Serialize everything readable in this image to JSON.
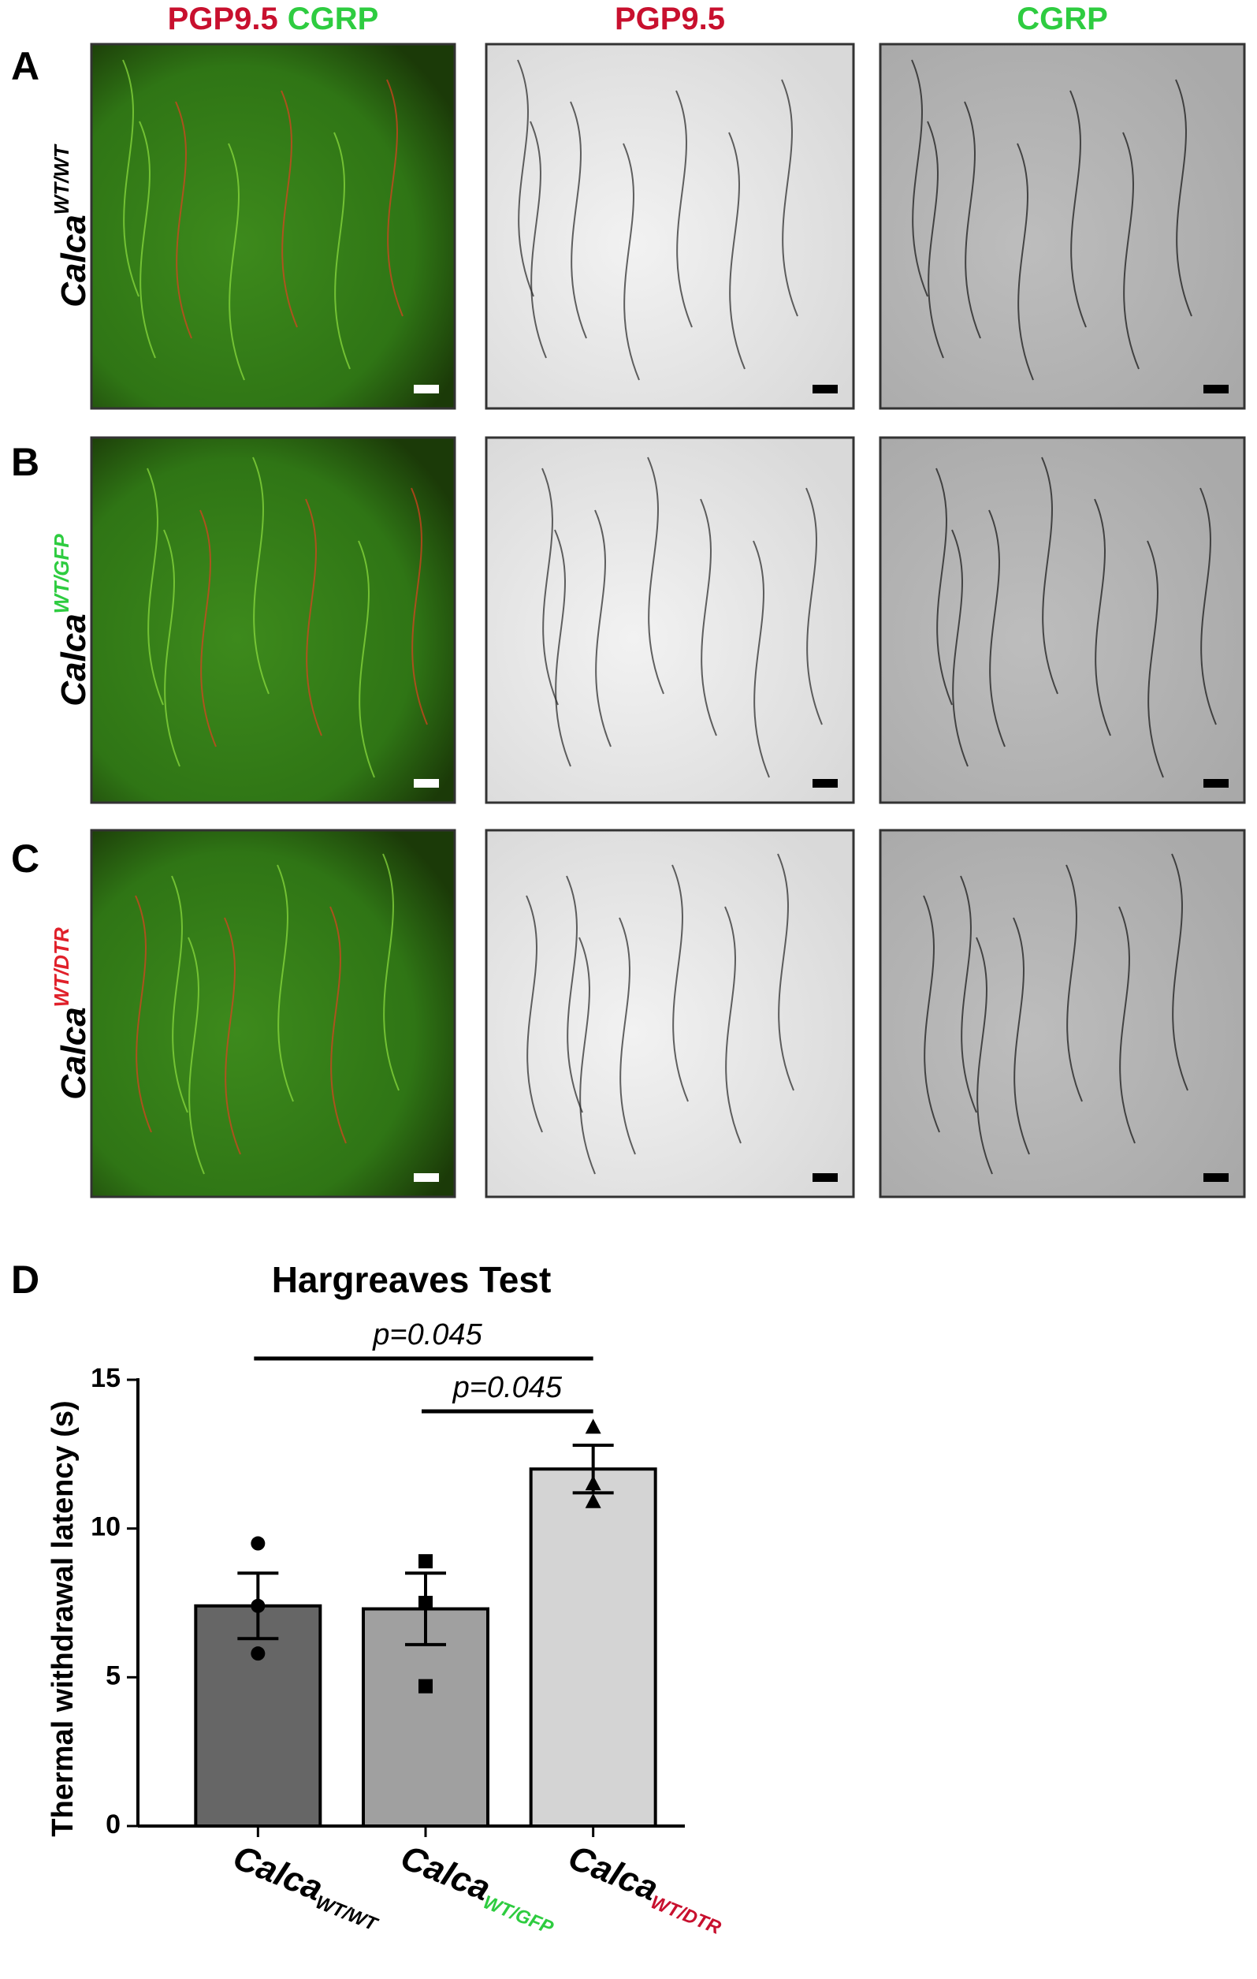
{
  "figure": {
    "panel_labels": [
      "A",
      "B",
      "C",
      "D"
    ],
    "column_headers": [
      {
        "parts": [
          "PGP9.5",
          "CGRP"
        ],
        "colors": [
          "#c8102e",
          "#2ecc40"
        ]
      },
      {
        "parts": [
          "PGP9.5"
        ],
        "colors": [
          "#c8102e"
        ]
      },
      {
        "parts": [
          "CGRP"
        ],
        "colors": [
          "#2ecc40"
        ]
      }
    ],
    "row_labels": [
      {
        "text": "Calca",
        "sup": "WT/WT",
        "sup_color": "#ffffff"
      },
      {
        "text": "Calca",
        "sup": "WT/GFP",
        "sup_color": "#2ecc40"
      },
      {
        "text": "Calca",
        "sup": "WT/DTR",
        "sup_color": "#e0202a"
      }
    ]
  },
  "chart_data": {
    "type": "bar",
    "title": "Hargreaves Test",
    "y_label": "Thermal withdrawal latency (s)",
    "categories": [
      {
        "text": "Calca",
        "sup": "WT/WT",
        "sup_color": "#000000"
      },
      {
        "text": "Calca",
        "sup": "WT/GFP",
        "sup_color": "#2ecc40"
      },
      {
        "text": "Calca",
        "sup": "WT/DTR",
        "sup_color": "#c8102e"
      }
    ],
    "values": [
      7.4,
      7.3,
      12.0
    ],
    "errors": [
      1.1,
      1.2,
      0.8
    ],
    "points": [
      [
        9.5,
        7.4,
        5.8
      ],
      [
        8.9,
        7.5,
        4.7
      ],
      [
        13.4,
        11.5,
        10.9
      ]
    ],
    "markers": [
      "circle",
      "square",
      "triangle"
    ],
    "colors": [
      "#666666",
      "#a0a0a0",
      "#d4d4d4"
    ],
    "ylim": [
      0,
      15
    ],
    "yticks": [
      0,
      5,
      10,
      15
    ],
    "annotations": [
      {
        "text": "p=0.045",
        "from": 0,
        "to": 2
      },
      {
        "text": "p=0.045",
        "from": 1,
        "to": 2
      }
    ]
  }
}
